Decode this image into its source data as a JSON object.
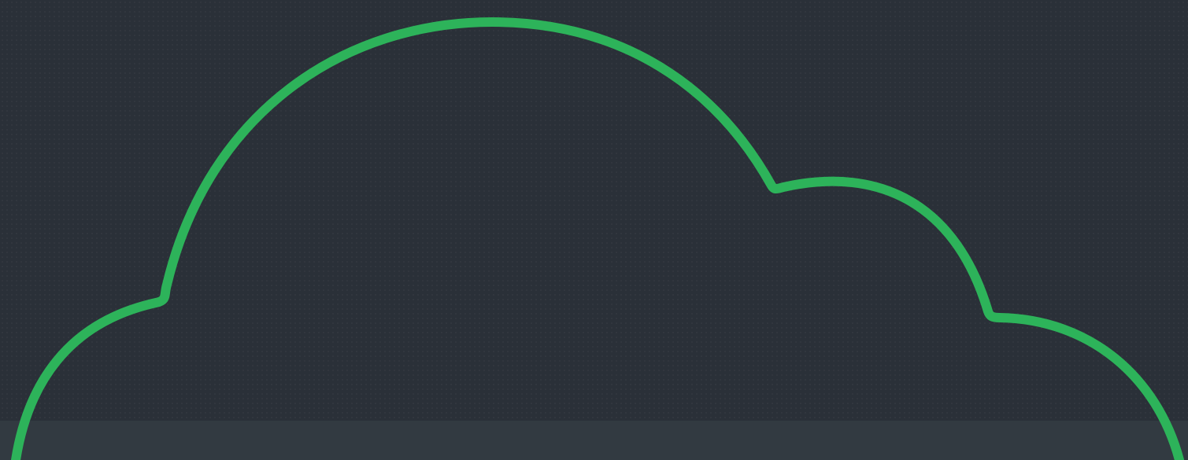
{
  "hero": {
    "illustration": "cloud-outline-icon",
    "colors": {
      "background": "#2a3038",
      "band": "#323a41",
      "cloud_stroke": "#2db35a"
    }
  }
}
